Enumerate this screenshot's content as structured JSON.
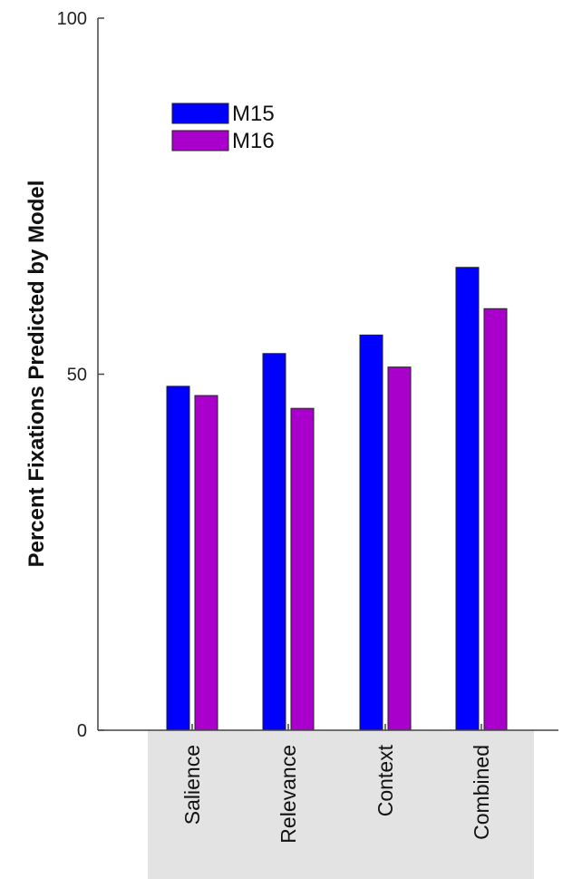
{
  "chart_data": {
    "type": "bar",
    "title": "",
    "xlabel": "",
    "ylabel": "Percent Fixations Predicted by Model",
    "ylim": [
      0,
      100
    ],
    "yticks": [
      0,
      50,
      100
    ],
    "categories": [
      "Salience",
      "Relevance",
      "Context",
      "Combined"
    ],
    "series": [
      {
        "name": "M15",
        "values": [
          48.3,
          52.9,
          55.5,
          65.0
        ]
      },
      {
        "name": "M16",
        "values": [
          47.0,
          45.2,
          51.0,
          59.2
        ]
      }
    ],
    "colors": {
      "M15": "#0000ff",
      "M16": "#aa00cc"
    },
    "category_band_color": "#e3e3e3",
    "legend": "top-left",
    "grid": false
  }
}
